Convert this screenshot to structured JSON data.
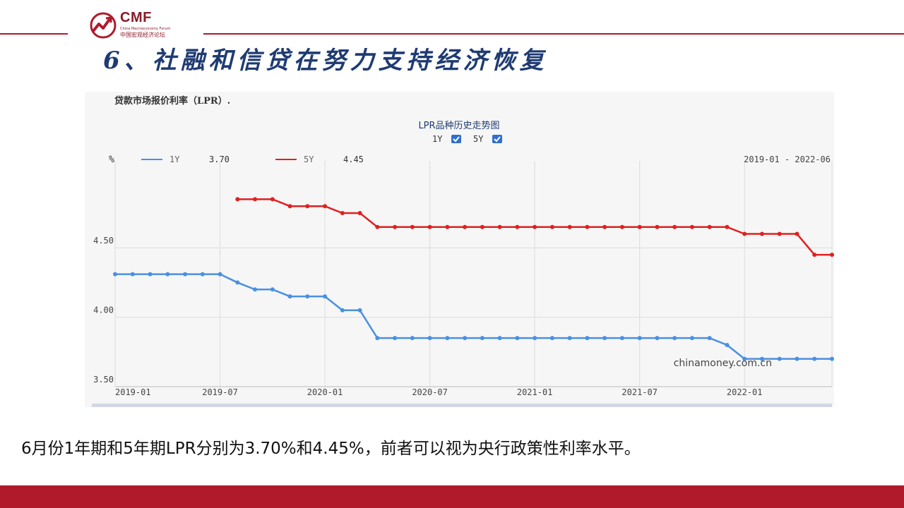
{
  "header": {
    "logo_text": "CMF",
    "logo_sub": "China Macroeconomy Forum",
    "logo_sub_cn": "中国宏观经济论坛",
    "title": "6、社融和信贷在努力支持经济恢复"
  },
  "colors": {
    "brand_red": "#b01a2b",
    "title_blue": "#1f3b73",
    "series_1y": "#4a90e2",
    "series_5y": "#e02020"
  },
  "chart_data": {
    "type": "line",
    "caption": "贷款市场报价利率（LPR）.",
    "title": "LPR品种历史走势图",
    "checkboxes": [
      {
        "label": "1Y",
        "checked": true
      },
      {
        "label": "5Y",
        "checked": true
      }
    ],
    "ylabel": "%",
    "ylim": [
      3.5,
      5.05
    ],
    "yticks": [
      {
        "value": 3.5,
        "label": "3.50"
      },
      {
        "value": 4.0,
        "label": "4.00"
      },
      {
        "value": 4.5,
        "label": "4.50"
      }
    ],
    "xticks": [
      "2019-01",
      "2019-07",
      "2020-01",
      "2020-07",
      "2021-01",
      "2021-07",
      "2022-01"
    ],
    "x": [
      "2019-01",
      "2019-02",
      "2019-03",
      "2019-04",
      "2019-05",
      "2019-06",
      "2019-07",
      "2019-08",
      "2019-09",
      "2019-10",
      "2019-11",
      "2019-12",
      "2020-01",
      "2020-02",
      "2020-03",
      "2020-04",
      "2020-05",
      "2020-06",
      "2020-07",
      "2020-08",
      "2020-09",
      "2020-10",
      "2020-11",
      "2020-12",
      "2021-01",
      "2021-02",
      "2021-03",
      "2021-04",
      "2021-05",
      "2021-06",
      "2021-07",
      "2021-08",
      "2021-09",
      "2021-10",
      "2021-11",
      "2021-12",
      "2022-01",
      "2022-02",
      "2022-03",
      "2022-04",
      "2022-05",
      "2022-06"
    ],
    "date_range": "2019-01 - 2022-06",
    "series": [
      {
        "name": "1Y",
        "latest": "3.70",
        "color": "#4a90e2",
        "values": [
          4.31,
          4.31,
          4.31,
          4.31,
          4.31,
          4.31,
          4.31,
          4.25,
          4.2,
          4.2,
          4.15,
          4.15,
          4.15,
          4.05,
          4.05,
          3.85,
          3.85,
          3.85,
          3.85,
          3.85,
          3.85,
          3.85,
          3.85,
          3.85,
          3.85,
          3.85,
          3.85,
          3.85,
          3.85,
          3.85,
          3.85,
          3.85,
          3.85,
          3.85,
          3.85,
          3.8,
          3.7,
          3.7,
          3.7,
          3.7,
          3.7,
          3.7
        ]
      },
      {
        "name": "5Y",
        "latest": "4.45",
        "color": "#e02020",
        "values": [
          null,
          null,
          null,
          null,
          null,
          null,
          null,
          4.85,
          4.85,
          4.85,
          4.8,
          4.8,
          4.8,
          4.75,
          4.75,
          4.65,
          4.65,
          4.65,
          4.65,
          4.65,
          4.65,
          4.65,
          4.65,
          4.65,
          4.65,
          4.65,
          4.65,
          4.65,
          4.65,
          4.65,
          4.65,
          4.65,
          4.65,
          4.65,
          4.65,
          4.65,
          4.6,
          4.6,
          4.6,
          4.6,
          4.45,
          4.45
        ]
      }
    ],
    "watermark": "chinamoney.com.cn",
    "grid": true
  },
  "body_text": "6月份1年期和5年期LPR分别为3.70%和4.45%，前者可以视为央行政策性利率水平。"
}
